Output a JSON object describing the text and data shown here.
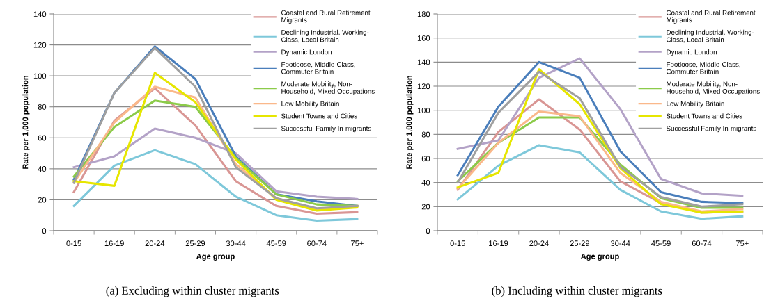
{
  "chart_data": [
    {
      "type": "line",
      "xlabel": "Age group",
      "ylabel": "Rate per 1,000 population",
      "categories": [
        "0-15",
        "16-19",
        "20-24",
        "25-29",
        "30-44",
        "45-59",
        "60-74",
        "75+"
      ],
      "ylim": [
        0,
        140
      ],
      "yticks": [
        0,
        20,
        40,
        60,
        80,
        100,
        120,
        140
      ],
      "grid": "y",
      "legend": "top right",
      "marker": "none",
      "line_style": "solid",
      "annotations": [
        "(a) Excluding within cluster migrants"
      ],
      "series": [
        {
          "name": "Coastal and Rural Retirement Migrants",
          "color": "#d99694",
          "values": [
            25,
            71,
            92,
            68,
            32,
            16,
            11,
            12
          ]
        },
        {
          "name": "Declining Industrial, Working-Class, Local Britain",
          "color": "#7ec8da",
          "values": [
            16,
            42,
            52,
            43,
            22,
            10,
            6.5,
            7.5
          ]
        },
        {
          "name": "Dynamic London",
          "color": "#b3a2c7",
          "values": [
            41,
            48,
            66,
            60,
            50,
            25.5,
            22,
            20.5
          ]
        },
        {
          "name": "Footloose, Middle-Class, Commuter Britain",
          "color": "#4a7ebb",
          "values": [
            33,
            89,
            119,
            98,
            48,
            23.5,
            19,
            16
          ]
        },
        {
          "name": "Moderate Mobility, Non-Household, Mixed Occupations",
          "color": "#8ccb4a",
          "values": [
            35,
            67,
            84,
            80,
            47,
            23.5,
            17,
            16
          ]
        },
        {
          "name": "Low Mobility Britain",
          "color": "#fab88a",
          "values": [
            31,
            70,
            93,
            86,
            43,
            21,
            14,
            16
          ]
        },
        {
          "name": "Student Towns and Cities",
          "color": "#e6e600",
          "values": [
            32,
            29,
            102,
            83,
            46,
            20,
            13,
            15
          ]
        },
        {
          "name": "Successful Family In-migrants",
          "color": "#a0a0a0",
          "values": [
            31,
            89,
            118,
            93,
            41,
            21,
            14.5,
            16
          ]
        }
      ]
    },
    {
      "type": "line",
      "xlabel": "Age group",
      "ylabel": "Rate per 1,000 population",
      "categories": [
        "0-15",
        "16-19",
        "20-24",
        "25-29",
        "30-44",
        "45-59",
        "60-74",
        "75+"
      ],
      "ylim": [
        0,
        180
      ],
      "yticks": [
        0,
        20,
        40,
        60,
        80,
        100,
        120,
        140,
        160,
        180
      ],
      "grid": "y",
      "legend": "top right",
      "marker": "none",
      "line_style": "solid",
      "annotations": [
        "(b) Including within cluster migrants"
      ],
      "series": [
        {
          "name": "Coastal and Rural Retirement Migrants",
          "color": "#d99694",
          "values": [
            34,
            82,
            109,
            84,
            41,
            23,
            15,
            16
          ]
        },
        {
          "name": "Declining Industrial, Working-Class, Local Britain",
          "color": "#7ec8da",
          "values": [
            26,
            54,
            71,
            65,
            34,
            16,
            10,
            12
          ]
        },
        {
          "name": "Dynamic London",
          "color": "#b3a2c7",
          "values": [
            68,
            75,
            127,
            143,
            101,
            43,
            31,
            29
          ]
        },
        {
          "name": "Footloose, Middle-Class, Commuter Britain",
          "color": "#4a7ebb",
          "values": [
            46,
            103,
            140,
            127,
            66,
            32,
            24,
            23
          ]
        },
        {
          "name": "Moderate Mobility, Non-Household, Mixed Occupations",
          "color": "#8ccb4a",
          "values": [
            41,
            73,
            94,
            94,
            55,
            27,
            19,
            19
          ]
        },
        {
          "name": "Low Mobility Britain",
          "color": "#fab88a",
          "values": [
            35,
            73,
            99,
            95,
            48,
            24,
            16,
            18
          ]
        },
        {
          "name": "Student Towns and Cities",
          "color": "#e6e600",
          "values": [
            36,
            48,
            134,
            105,
            52,
            22,
            15,
            16
          ]
        },
        {
          "name": "Successful Family In-migrants",
          "color": "#a0a0a0",
          "values": [
            40,
            98,
            132,
            110,
            53,
            28,
            20,
            22
          ]
        }
      ]
    }
  ]
}
